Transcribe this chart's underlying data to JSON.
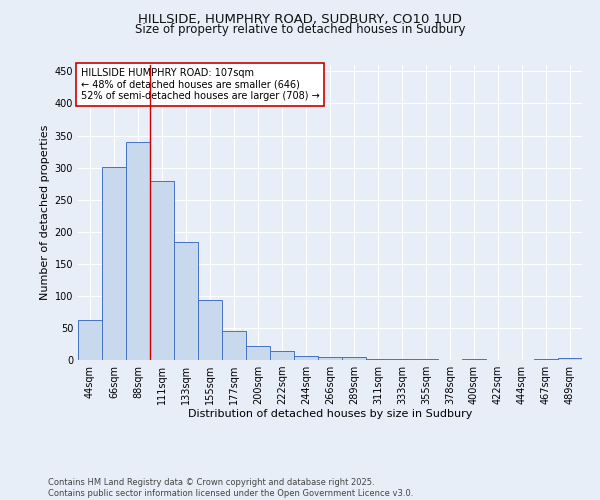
{
  "title1": "HILLSIDE, HUMPHRY ROAD, SUDBURY, CO10 1UD",
  "title2": "Size of property relative to detached houses in Sudbury",
  "xlabel": "Distribution of detached houses by size in Sudbury",
  "ylabel": "Number of detached properties",
  "categories": [
    "44sqm",
    "66sqm",
    "88sqm",
    "111sqm",
    "133sqm",
    "155sqm",
    "177sqm",
    "200sqm",
    "222sqm",
    "244sqm",
    "266sqm",
    "289sqm",
    "311sqm",
    "333sqm",
    "355sqm",
    "378sqm",
    "400sqm",
    "422sqm",
    "444sqm",
    "467sqm",
    "489sqm"
  ],
  "values": [
    63,
    301,
    340,
    279,
    184,
    93,
    45,
    22,
    14,
    7,
    5,
    4,
    2,
    2,
    2,
    0,
    2,
    0,
    0,
    2,
    3
  ],
  "bar_color": "#c8d9ee",
  "bar_edge_color": "#4472c4",
  "vline_x_index": 2,
  "vline_color": "#cc0000",
  "annotation_text": "HILLSIDE HUMPHRY ROAD: 107sqm\n← 48% of detached houses are smaller (646)\n52% of semi-detached houses are larger (708) →",
  "annotation_box_color": "#ffffff",
  "annotation_box_edge": "#cc0000",
  "ylim": [
    0,
    460
  ],
  "yticks": [
    0,
    50,
    100,
    150,
    200,
    250,
    300,
    350,
    400,
    450
  ],
  "bg_color": "#e8eef8",
  "footer_text": "Contains HM Land Registry data © Crown copyright and database right 2025.\nContains public sector information licensed under the Open Government Licence v3.0.",
  "title_fontsize": 9.5,
  "subtitle_fontsize": 8.5,
  "axis_label_fontsize": 8,
  "tick_fontsize": 7,
  "annotation_fontsize": 7,
  "footer_fontsize": 6
}
